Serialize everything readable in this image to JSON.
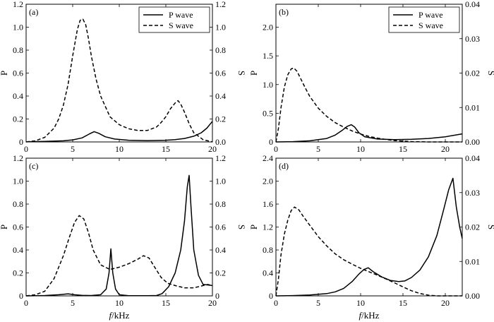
{
  "chart_data": [
    {
      "panel": "(a)",
      "type": "line",
      "xlim": [
        0,
        20
      ],
      "ylim_left": [
        0,
        1.2
      ],
      "ylim_right": [
        0,
        1.2
      ],
      "ylabel_left": "P",
      "ylabel_right": "S",
      "x_ticks": [
        "0",
        "5",
        "10",
        "15",
        "20"
      ],
      "yl_ticks": [
        "0",
        "0.2",
        "0.4",
        "0.6",
        "0.8",
        "1.0",
        "1.2"
      ],
      "yr_ticks": [
        "0.0",
        "0.2",
        "0.4",
        "0.6",
        "0.8",
        "1.0",
        "1.2"
      ],
      "legend": {
        "show": true,
        "placement": "top-right"
      },
      "series": [
        {
          "name": "P wave",
          "style": "solid",
          "axis": "left",
          "x": [
            0,
            2,
            4,
            5,
            6,
            6.8,
            7.3,
            7.8,
            8.5,
            9.5,
            11,
            13,
            15,
            16,
            17,
            18,
            18.8,
            19.4,
            20
          ],
          "y": [
            0.002,
            0.004,
            0.01,
            0.018,
            0.035,
            0.07,
            0.09,
            0.075,
            0.045,
            0.025,
            0.015,
            0.012,
            0.015,
            0.02,
            0.03,
            0.05,
            0.08,
            0.12,
            0.18
          ]
        },
        {
          "name": "S wave",
          "style": "dashed",
          "axis": "right",
          "x": [
            0,
            1,
            2,
            3,
            3.5,
            4,
            4.5,
            5,
            5.5,
            5.8,
            6.1,
            6.4,
            6.7,
            7,
            7.5,
            8,
            9,
            10,
            11,
            12,
            13,
            14,
            14.5,
            15,
            15.5,
            16,
            16.3,
            16.6,
            17,
            17.5,
            18,
            19,
            20
          ],
          "y": [
            0,
            0.01,
            0.04,
            0.12,
            0.2,
            0.32,
            0.5,
            0.75,
            0.98,
            1.06,
            1.07,
            1.02,
            0.9,
            0.75,
            0.55,
            0.4,
            0.22,
            0.15,
            0.115,
            0.1,
            0.1,
            0.13,
            0.17,
            0.22,
            0.29,
            0.34,
            0.36,
            0.33,
            0.26,
            0.16,
            0.08,
            0.02,
            0.0
          ]
        }
      ]
    },
    {
      "panel": "(b)",
      "type": "line",
      "xlim": [
        0,
        22
      ],
      "ylim_left": [
        0,
        2.4
      ],
      "ylim_right": [
        0,
        0.04
      ],
      "ylabel_left": "P",
      "ylabel_right": "S",
      "x_ticks": [
        "0",
        "5",
        "10",
        "15",
        "20"
      ],
      "yl_ticks": [
        "0",
        "0.5",
        "1.0",
        "1.5",
        "2.0"
      ],
      "yr_ticks": [
        "0.00",
        "0.01",
        "0.02",
        "0.03",
        "0.04"
      ],
      "legend": {
        "show": true,
        "placement": "top-right"
      },
      "series": [
        {
          "name": "P wave",
          "style": "solid",
          "axis": "left",
          "x": [
            0,
            2,
            4,
            6,
            7,
            7.8,
            8.4,
            8.9,
            9.3,
            9.8,
            10.5,
            12,
            14,
            16,
            18,
            20,
            22
          ],
          "y": [
            0,
            0.005,
            0.02,
            0.06,
            0.12,
            0.2,
            0.27,
            0.3,
            0.26,
            0.16,
            0.09,
            0.05,
            0.04,
            0.045,
            0.06,
            0.09,
            0.14
          ]
        },
        {
          "name": "S wave",
          "style": "dashed",
          "axis": "right",
          "x": [
            0,
            0.3,
            0.6,
            1,
            1.4,
            1.8,
            2.1,
            2.5,
            3,
            3.5,
            4,
            5,
            6,
            7,
            8,
            9,
            10,
            11,
            12,
            13,
            14,
            16,
            18,
            20,
            22
          ],
          "y": [
            0,
            0.004,
            0.01,
            0.016,
            0.0195,
            0.0212,
            0.0215,
            0.0205,
            0.018,
            0.0155,
            0.0132,
            0.0098,
            0.0074,
            0.0056,
            0.0043,
            0.0032,
            0.0023,
            0.0016,
            0.0011,
            0.0007,
            0.0004,
            0.0001,
            0,
            0,
            0
          ]
        }
      ]
    },
    {
      "panel": "(c)",
      "type": "line",
      "xlim": [
        0,
        20
      ],
      "ylim_left": [
        0,
        1.2
      ],
      "ylim_right": [
        0,
        1.2
      ],
      "ylabel_left": "P",
      "ylabel_right": "S",
      "x_ticks": [
        "0",
        "5",
        "10",
        "15",
        "20"
      ],
      "yl_ticks": [
        "0",
        "0.2",
        "0.4",
        "0.6",
        "0.8",
        "1.0",
        "1.2"
      ],
      "yr_ticks": [
        "0",
        "0.2",
        "0.4",
        "0.6",
        "0.8",
        "1.0",
        "1.2"
      ],
      "xlabel": "f /kHz",
      "legend": {
        "show": false
      },
      "series": [
        {
          "name": "P wave",
          "style": "solid",
          "axis": "left",
          "x": [
            0,
            2,
            3.5,
            4.5,
            5.2,
            6,
            7,
            8,
            8.6,
            8.9,
            9.1,
            9.3,
            9.6,
            10,
            11,
            12,
            13,
            14,
            14.6,
            15.3,
            16,
            16.6,
            17,
            17.3,
            17.5,
            17.7,
            18,
            18.5,
            19,
            20
          ],
          "y": [
            0,
            0.003,
            0.01,
            0.018,
            0.01,
            0.005,
            0.003,
            0.01,
            0.06,
            0.2,
            0.41,
            0.2,
            0.06,
            0.01,
            0.002,
            0.001,
            0.001,
            0.003,
            0.02,
            0.08,
            0.2,
            0.4,
            0.65,
            0.95,
            1.05,
            0.78,
            0.4,
            0.18,
            0.1,
            0.09
          ]
        },
        {
          "name": "S wave",
          "style": "dashed",
          "axis": "right",
          "x": [
            0,
            1,
            2,
            3,
            4,
            4.6,
            5.2,
            5.7,
            6.2,
            6.7,
            7.2,
            8,
            9,
            10,
            11,
            12,
            12.6,
            13.2,
            13.8,
            14.5,
            15.2,
            16,
            17,
            18,
            19,
            19.5,
            20
          ],
          "y": [
            0,
            0.01,
            0.04,
            0.15,
            0.35,
            0.5,
            0.64,
            0.7,
            0.67,
            0.55,
            0.4,
            0.27,
            0.23,
            0.25,
            0.28,
            0.32,
            0.35,
            0.33,
            0.25,
            0.16,
            0.11,
            0.09,
            0.07,
            0.07,
            0.09,
            0.1,
            0.09
          ]
        }
      ]
    },
    {
      "panel": "(d)",
      "type": "line",
      "xlim": [
        0,
        22
      ],
      "ylim_left": [
        0,
        2.4
      ],
      "ylim_right": [
        0,
        0.04
      ],
      "ylabel_left": "P",
      "ylabel_right": "S",
      "x_ticks": [
        "0",
        "5",
        "10",
        "15",
        "20"
      ],
      "yl_ticks": [
        "0",
        "0.4",
        "0.8",
        "1.2",
        "1.6",
        "2.0",
        "2.4"
      ],
      "yr_ticks": [
        "0.00",
        "0.01",
        "0.02",
        "0.03",
        "0.04"
      ],
      "xlabel": "f /kHz",
      "legend": {
        "show": false
      },
      "series": [
        {
          "name": "P wave",
          "style": "solid",
          "axis": "left",
          "x": [
            0,
            2,
            4,
            6,
            7,
            8,
            9,
            9.8,
            10.4,
            10.9,
            11.5,
            12.5,
            13.5,
            14.5,
            15.2,
            16,
            17,
            18,
            19,
            19.8,
            20.4,
            20.9,
            21.3,
            21.7,
            22
          ],
          "y": [
            0,
            0.005,
            0.015,
            0.04,
            0.07,
            0.13,
            0.25,
            0.38,
            0.46,
            0.49,
            0.42,
            0.33,
            0.27,
            0.25,
            0.26,
            0.32,
            0.45,
            0.68,
            1.05,
            1.5,
            1.85,
            2.05,
            1.55,
            1.2,
            1.0
          ]
        },
        {
          "name": "S wave",
          "style": "dashed",
          "axis": "right",
          "x": [
            0,
            0.3,
            0.6,
            1,
            1.4,
            1.8,
            2.2,
            2.7,
            3.2,
            4,
            5,
            6,
            7,
            8,
            9,
            10,
            11,
            12,
            13,
            14,
            15,
            16,
            17,
            18,
            19,
            20,
            22
          ],
          "y": [
            0,
            0.005,
            0.012,
            0.018,
            0.022,
            0.0248,
            0.0258,
            0.025,
            0.0232,
            0.0205,
            0.0172,
            0.0145,
            0.0122,
            0.0105,
            0.0092,
            0.008,
            0.007,
            0.006,
            0.0049,
            0.0038,
            0.0026,
            0.0015,
            0.0007,
            0.0002,
            0,
            0,
            0
          ]
        }
      ]
    }
  ]
}
